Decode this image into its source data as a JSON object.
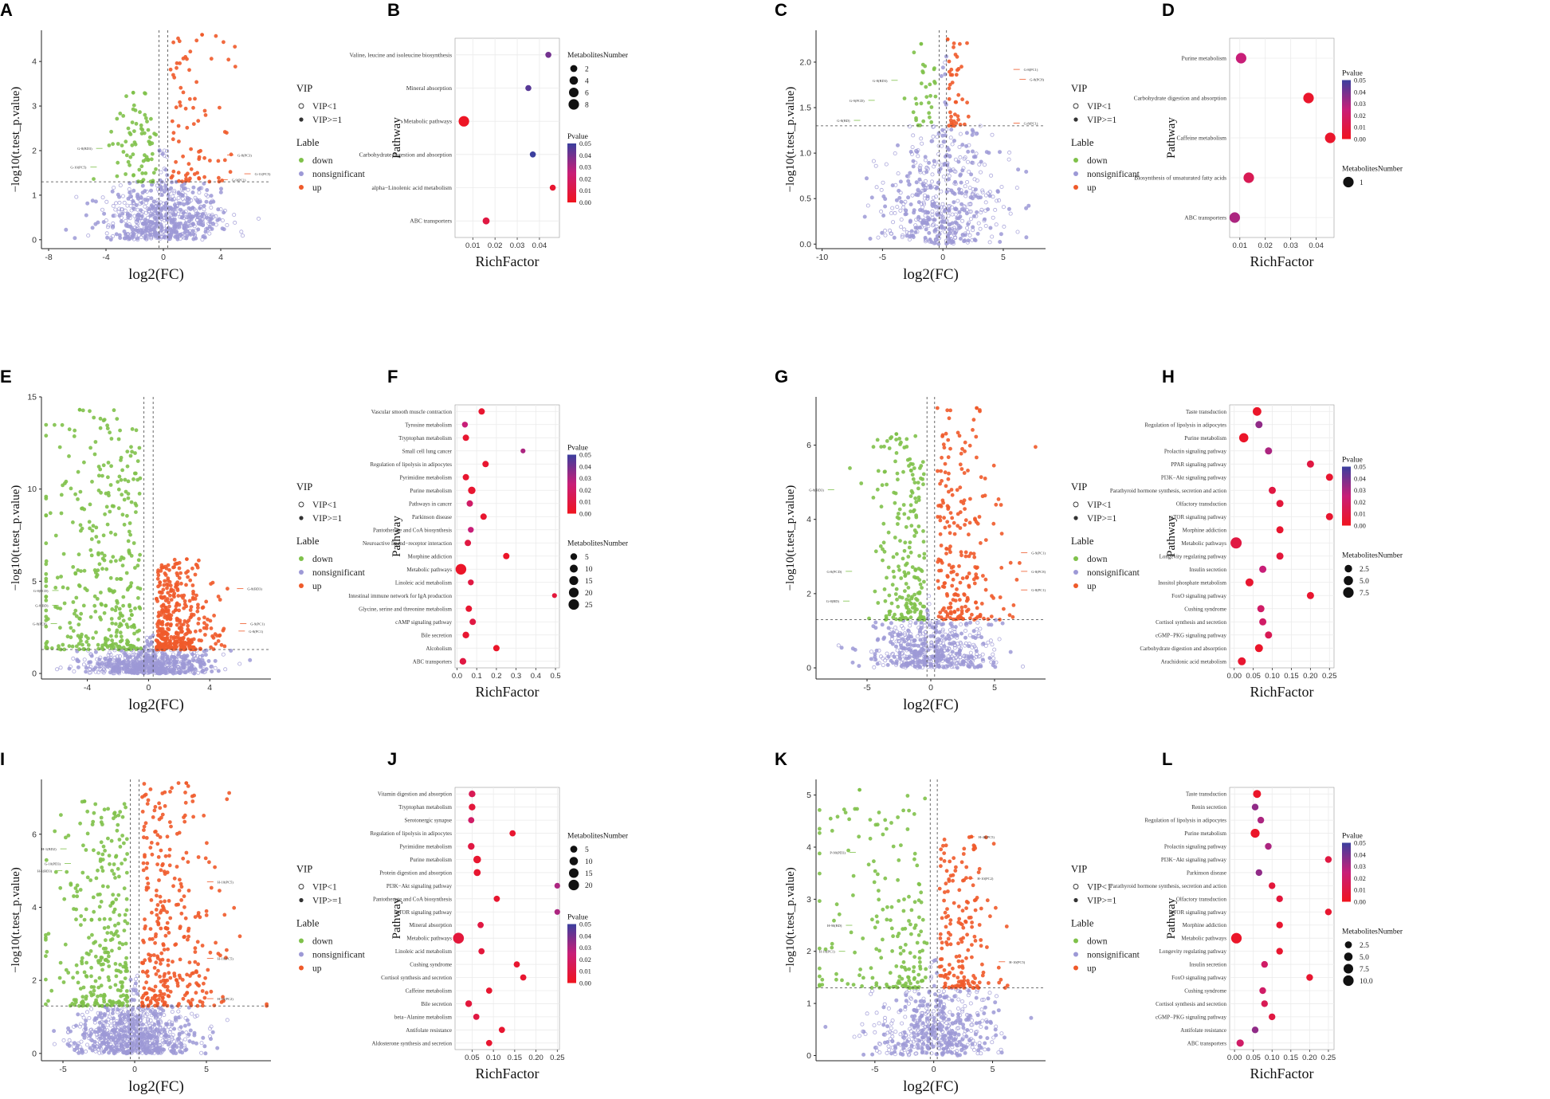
{
  "figure": {
    "description_text": ""
  },
  "colors": {
    "down": "#7fc14a",
    "nonsig": "#9d99d6",
    "up": "#ef5a2a",
    "grid": "#ebebeb",
    "p_high": "#3b3f9e",
    "p_low": "#f0141e"
  },
  "common": {
    "volcano_xlabel": "log2(FC)",
    "volcano_ylabel": "−log10(t.test_p.value)",
    "vip_title": "VIP",
    "vip_items": [
      "VIP<1",
      "VIP>=1"
    ],
    "lable_title": "Lable",
    "lable_items": [
      "down",
      "nonsignificant",
      "up"
    ],
    "enrich_xlabel": "RichFactor",
    "enrich_ylabel": "Pathway",
    "pvalue_title": "Pvalue",
    "size_title": "MetabolitesNumber"
  },
  "chart_data": [
    {
      "panel": "A",
      "type": "scatter",
      "subtype": "volcano",
      "xlabel": "log2(FC)",
      "ylabel": "−log10(t.test_p.value)",
      "xlim": [
        -8.5,
        7.5
      ],
      "ylim": [
        -0.2,
        4.7
      ],
      "xticks": [
        -8,
        -4,
        0,
        4
      ],
      "yticks": [
        0,
        1,
        2,
        3,
        4
      ],
      "fc_lines": [
        -0.3,
        0.3
      ],
      "p_line": 1.3,
      "counts": {
        "nonsig": 650,
        "down": 75,
        "up": 80
      },
      "down_max": [
        -2.1,
        3.3
      ],
      "up_max": [
        2.7,
        4.6
      ],
      "annotations": [
        {
          "text": "G-8(PC3)",
          "x": 5.0,
          "y": 1.9
        },
        {
          "text": "G-11(PC5)",
          "x": 6.2,
          "y": 1.48
        },
        {
          "text": "G-9(PC1)",
          "x": 4.6,
          "y": 1.35
        },
        {
          "text": "G-8(BD3)",
          "x": -4.8,
          "y": 2.05
        },
        {
          "text": "G-10(PC5)",
          "x": -5.2,
          "y": 1.63
        }
      ]
    },
    {
      "panel": "B",
      "type": "scatter",
      "subtype": "enrichment",
      "xlabel": "RichFactor",
      "ylabel": "Pathway",
      "xlim": [
        0.002,
        0.049
      ],
      "xticks": [
        0.01,
        0.02,
        0.03,
        0.04
      ],
      "pathways": [
        "Valine, leucine and isoleucine biosynthesis",
        "Mineral absorption",
        "Metabolic pathways",
        "Carbohydrate digestion and absorption",
        "alpha−Linolenic acid metabolism",
        "ABC transporters"
      ],
      "rich": [
        0.044,
        0.035,
        0.006,
        0.037,
        0.046,
        0.016
      ],
      "counts": [
        1,
        1,
        8,
        1,
        1,
        2
      ],
      "pvalue": [
        0.04,
        0.045,
        0.002,
        0.05,
        0.005,
        0.01
      ],
      "pvalue_ticks": [
        "0.05",
        "0.04",
        "0.03",
        "0.02",
        "0.01",
        "0.00"
      ],
      "size_ticks": [
        "2",
        "4",
        "6",
        "8"
      ],
      "size_values": [
        2,
        4,
        6,
        8
      ]
    },
    {
      "panel": "C",
      "type": "scatter",
      "subtype": "volcano",
      "xlabel": "log2(FC)",
      "ylabel": "−log10(t.test_p.value)",
      "xlim": [
        -10.5,
        8.5
      ],
      "ylim": [
        -0.05,
        2.35
      ],
      "xticks": [
        -10,
        -5,
        0,
        5
      ],
      "yticks": [
        "0.0",
        "0.5",
        "1.0",
        "1.5",
        "2.0"
      ],
      "fc_lines": [
        -0.3,
        0.3
      ],
      "p_line": 1.3,
      "counts": {
        "nonsig": 520,
        "down": 30,
        "up": 40
      },
      "down_max": [
        -1.8,
        2.2
      ],
      "up_max": [
        0.4,
        2.25
      ],
      "annotations": [
        {
          "text": "G-8(PC1)",
          "x": 6.5,
          "y": 1.92
        },
        {
          "text": "G-8(PC8)",
          "x": 7.0,
          "y": 1.81
        },
        {
          "text": "G-8(BD3)",
          "x": -4.4,
          "y": 1.8
        },
        {
          "text": "G-8(PC1)",
          "x": 6.5,
          "y": 1.33
        },
        {
          "text": "G-9(PCD)",
          "x": -6.3,
          "y": 1.58
        },
        {
          "text": "G-8(BD)",
          "x": -7.5,
          "y": 1.36
        }
      ]
    },
    {
      "panel": "D",
      "type": "scatter",
      "subtype": "enrichment",
      "xlabel": "RichFactor",
      "ylabel": "Pathway",
      "xlim": [
        0.006,
        0.047
      ],
      "xticks": [
        0.01,
        0.02,
        0.03,
        0.04
      ],
      "pathways": [
        "Purine metabolism",
        "Carbohydrate digestion and absorption",
        "Caffeine metabolism",
        "Biosynthesis of unsaturated fatty acids",
        "ABC transporters"
      ],
      "rich": [
        0.0105,
        0.037,
        0.0455,
        0.0135,
        0.008
      ],
      "counts": [
        1,
        1,
        1,
        1,
        1
      ],
      "pvalue": [
        0.025,
        0.004,
        0.004,
        0.015,
        0.03
      ],
      "pvalue_ticks": [
        "0.05",
        "0.04",
        "0.03",
        "0.02",
        "0.01",
        "0.00"
      ],
      "size_ticks": [
        "1"
      ],
      "size_values": [
        1
      ]
    },
    {
      "panel": "E",
      "type": "scatter",
      "subtype": "volcano",
      "xlabel": "log2(FC)",
      "ylabel": "−log10(t.test_p.value)",
      "xlim": [
        -7.0,
        8.0
      ],
      "ylim": [
        -0.3,
        15.0
      ],
      "xticks": [
        -4,
        0,
        4
      ],
      "yticks": [
        0,
        5,
        10,
        15
      ],
      "fc_lines": [
        -0.3,
        0.3
      ],
      "p_line": 1.3,
      "counts": {
        "nonsig": 700,
        "down": 360,
        "up": 380
      },
      "down_max": [
        -4.5,
        14.3
      ],
      "up_max": [
        2.5,
        6.2
      ],
      "annotations": [
        {
          "text": "G-8(BD3)",
          "x": 6.3,
          "y": 4.6
        },
        {
          "text": "G-9(PC1)",
          "x": 6.5,
          "y": 2.7
        },
        {
          "text": "G-8(PC1)",
          "x": 6.4,
          "y": 2.3
        },
        {
          "text": "G-8(PCD)",
          "x": -6.4,
          "y": 4.5
        },
        {
          "text": "G-8(BD)",
          "x": -6.4,
          "y": 3.7
        },
        {
          "text": "G-8(PC8)",
          "x": -6.5,
          "y": 2.7
        }
      ]
    },
    {
      "panel": "F",
      "type": "scatter",
      "subtype": "enrichment",
      "xlabel": "RichFactor",
      "ylabel": "Pathway",
      "xlim": [
        -0.01,
        0.52
      ],
      "xticks": [
        "0.0",
        "0.1",
        "0.2",
        "0.3",
        "0.4",
        "0.5"
      ],
      "xtick_values": [
        0,
        0.1,
        0.2,
        0.3,
        0.4,
        0.5
      ],
      "pathways": [
        "Vascular smooth muscle contraction",
        "Tyrosine metabolism",
        "Tryptophan metabolism",
        "Small cell lung cancer",
        "Regulation of lipolysis in adipocytes",
        "Pyrimidine metabolism",
        "Purine metabolism",
        "Pathways in cancer",
        "Parkinson disease",
        "Pantothenate and CoA biosynthesis",
        "Neuroactive ligand−receptor interaction",
        "Morphine addiction",
        "Metabolic pathways",
        "Linoleic acid metabolism",
        "Intestinal immune network for IgA production",
        "Glycine, serine and threonine metabolism",
        "cAMP signaling pathway",
        "Bile secretion",
        "Alcoholism",
        "ABC transporters"
      ],
      "rich": [
        0.125,
        0.04,
        0.045,
        0.335,
        0.145,
        0.045,
        0.075,
        0.065,
        0.135,
        0.07,
        0.055,
        0.25,
        0.02,
        0.07,
        0.495,
        0.06,
        0.08,
        0.045,
        0.2,
        0.03
      ],
      "counts": [
        4,
        3,
        4,
        1,
        4,
        4,
        8,
        4,
        4,
        3,
        4,
        4,
        26,
        3,
        1,
        4,
        4,
        5,
        4,
        5
      ],
      "pvalue": [
        0.005,
        0.025,
        0.005,
        0.03,
        0.005,
        0.005,
        0.005,
        0.02,
        0.005,
        0.025,
        0.01,
        0.003,
        0.003,
        0.01,
        0.008,
        0.005,
        0.01,
        0.005,
        0.003,
        0.01
      ],
      "pvalue_ticks": [
        "0.05",
        "0.04",
        "0.03",
        "0.02",
        "0.01",
        "0.00"
      ],
      "size_ticks": [
        "5",
        "10",
        "15",
        "20",
        "25"
      ],
      "size_values": [
        5,
        10,
        15,
        20,
        25
      ]
    },
    {
      "panel": "G",
      "type": "scatter",
      "subtype": "volcano",
      "xlabel": "log2(FC)",
      "ylabel": "−log10(t.test_p.value)",
      "xlim": [
        -9.0,
        9.0
      ],
      "ylim": [
        -0.3,
        7.3
      ],
      "xticks": [
        -5,
        0,
        5
      ],
      "yticks": [
        0,
        2,
        4,
        6
      ],
      "fc_lines": [
        -0.3,
        0.3
      ],
      "p_line": 1.3,
      "counts": {
        "nonsig": 520,
        "down": 210,
        "up": 230
      },
      "down_max": [
        -2.7,
        6.3
      ],
      "up_max": [
        3.6,
        7.0
      ],
      "annotations": [
        {
          "text": "G-8(BD3)",
          "x": -8.2,
          "y": 4.8
        },
        {
          "text": "G-9(PC1)",
          "x": 7.7,
          "y": 3.1
        },
        {
          "text": "G-8(PC8)",
          "x": 7.7,
          "y": 2.6
        },
        {
          "text": "G-8(PC1)",
          "x": 7.7,
          "y": 2.1
        },
        {
          "text": "G-8(PCD)",
          "x": -6.8,
          "y": 2.6
        },
        {
          "text": "G-8(BD)",
          "x": -7.0,
          "y": 1.8
        }
      ]
    },
    {
      "panel": "H",
      "type": "scatter",
      "subtype": "enrichment",
      "xlabel": "RichFactor",
      "ylabel": "Pathway",
      "xlim": [
        -0.012,
        0.262
      ],
      "xticks": [
        "0.00",
        "0.05",
        "0.10",
        "0.15",
        "0.20",
        "0.25"
      ],
      "xtick_values": [
        0,
        0.05,
        0.1,
        0.15,
        0.2,
        0.25
      ],
      "pathways": [
        "Taste transduction",
        "Regulation of lipolysis in adipocytes",
        "Purine metabolism",
        "Prolactin signaling pathway",
        "PPAR signaling pathway",
        "PI3K−Akt signaling pathway",
        "Parathyroid hormone synthesis, secretion and action",
        "Olfactory transduction",
        "mTOR signaling pathway",
        "Morphine addiction",
        "Metabolic pathways",
        "Longevity regulating pathway",
        "Insulin secretion",
        "Inositol phosphate metabolism",
        "FoxO signaling pathway",
        "Cushing syndrome",
        "Cortisol synthesis and secretion",
        "cGMP−PKG signaling pathway",
        "Carbohydrate digestion and absorption",
        "Arachidonic acid metabolism"
      ],
      "rich": [
        0.06,
        0.065,
        0.025,
        0.09,
        0.2,
        0.25,
        0.1,
        0.12,
        0.25,
        0.12,
        0.005,
        0.12,
        0.075,
        0.04,
        0.2,
        0.07,
        0.075,
        0.09,
        0.065,
        0.02
      ],
      "counts": [
        4,
        2,
        5,
        2,
        2,
        2,
        2,
        2,
        2,
        2,
        9,
        2,
        2,
        3,
        2,
        2,
        2,
        2,
        3,
        3
      ],
      "pvalue": [
        0.003,
        0.035,
        0.003,
        0.03,
        0.01,
        0.005,
        0.01,
        0.008,
        0.005,
        0.005,
        0.01,
        0.008,
        0.025,
        0.005,
        0.005,
        0.02,
        0.02,
        0.015,
        0.003,
        0.005
      ],
      "pvalue_ticks": [
        "0.05",
        "0.04",
        "0.03",
        "0.02",
        "0.01",
        "0.00"
      ],
      "size_ticks": [
        "2.5",
        "5.0",
        "7.5"
      ],
      "size_values": [
        2.5,
        5,
        7.5
      ]
    },
    {
      "panel": "I",
      "type": "scatter",
      "subtype": "volcano",
      "xlabel": "log2(FC)",
      "ylabel": "−log10(t.test_p.value)",
      "xlim": [
        -6.5,
        9.5
      ],
      "ylim": [
        -0.2,
        7.5
      ],
      "xticks": [
        -5,
        0,
        5
      ],
      "yticks": [
        0,
        2,
        4,
        6
      ],
      "fc_lines": [
        -0.3,
        0.3
      ],
      "p_line": 1.3,
      "counts": {
        "nonsig": 750,
        "down": 290,
        "up": 320
      },
      "down_max": [
        -3.5,
        6.9
      ],
      "up_max": [
        3.6,
        7.4
      ],
      "annotations": [
        {
          "text": "H-10(PC5)",
          "x": 5.6,
          "y": 4.7
        },
        {
          "text": "H-1(BD2)",
          "x": -5.3,
          "y": 5.6
        },
        {
          "text": "G-10(PD3)",
          "x": -5.0,
          "y": 5.2
        },
        {
          "text": "H-1(BD3)",
          "x": -5.6,
          "y": 5.0
        },
        {
          "text": "H-10(PC5)",
          "x": 5.6,
          "y": 2.6
        },
        {
          "text": "H-10(PC2)",
          "x": 5.6,
          "y": 1.5
        }
      ]
    },
    {
      "panel": "J",
      "type": "scatter",
      "subtype": "enrichment",
      "xlabel": "RichFactor",
      "ylabel": "Pathway",
      "xlim": [
        0.01,
        0.255
      ],
      "xticks": [
        "0.05",
        "0.10",
        "0.15",
        "0.20",
        "0.25"
      ],
      "xtick_values": [
        0.05,
        0.1,
        0.15,
        0.2,
        0.25
      ],
      "pathways": [
        "Vitamin digestion and absorption",
        "Tryptophan metabolism",
        "Serotonergic synapse",
        "Regulation of lipolysis in adipocytes",
        "Pyrimidine metabolism",
        "Purine metabolism",
        "Protein digestion and absorption",
        "PI3K−Akt signaling pathway",
        "Pantothenate and CoA biosynthesis",
        "mTOR signaling pathway",
        "Mineral absorption",
        "Metabolic pathways",
        "Linoleic acid metabolism",
        "Cushing syndrome",
        "Cortisol synthesis and secretion",
        "Caffeine metabolism",
        "Bile secretion",
        "beta−Alanine metabolism",
        "Antifolate resistance",
        "Aldosterone synthesis and secretion"
      ],
      "rich": [
        0.05,
        0.05,
        0.048,
        0.145,
        0.048,
        0.062,
        0.062,
        0.25,
        0.108,
        0.25,
        0.07,
        0.018,
        0.072,
        0.155,
        0.17,
        0.09,
        0.042,
        0.06,
        0.12,
        0.09
      ],
      "counts": [
        4,
        4,
        3,
        3,
        4,
        7,
        5,
        2,
        3,
        2,
        3,
        22,
        3,
        3,
        3,
        3,
        4,
        3,
        3,
        3
      ],
      "pvalue": [
        0.015,
        0.008,
        0.02,
        0.005,
        0.01,
        0.005,
        0.005,
        0.03,
        0.005,
        0.03,
        0.01,
        0.008,
        0.008,
        0.005,
        0.005,
        0.005,
        0.008,
        0.01,
        0.005,
        0.005
      ],
      "pvalue_ticks": [
        "0.05",
        "0.04",
        "0.03",
        "0.02",
        "0.01",
        "0.00"
      ],
      "size_ticks": [
        "5",
        "10",
        "15",
        "20"
      ],
      "size_values": [
        5,
        10,
        15,
        20
      ]
    },
    {
      "panel": "K",
      "type": "scatter",
      "subtype": "volcano",
      "xlabel": "log2(FC)",
      "ylabel": "−log10(t.test_p.value)",
      "xlim": [
        -10.0,
        9.5
      ],
      "ylim": [
        -0.1,
        5.3
      ],
      "xticks": [
        -5,
        0,
        5
      ],
      "yticks": [
        0,
        1,
        2,
        3,
        4,
        5
      ],
      "fc_lines": [
        -0.3,
        0.3
      ],
      "p_line": 1.3,
      "counts": {
        "nonsig": 500,
        "down": 180,
        "up": 170
      },
      "down_max": [
        -6.3,
        5.1
      ],
      "up_max": [
        3.2,
        4.2
      ],
      "annotations": [
        {
          "text": "H-40(PC5)",
          "x": 3.6,
          "y": 4.2
        },
        {
          "text": "P-90(PD3)",
          "x": -7.3,
          "y": 3.9
        },
        {
          "text": "H-10(PC2)",
          "x": 3.5,
          "y": 3.4
        },
        {
          "text": "H-90(BD)",
          "x": -7.6,
          "y": 2.5
        },
        {
          "text": "H-10(PC1)",
          "x": -8.2,
          "y": 2.0
        },
        {
          "text": "H-10(PC5)",
          "x": 6.2,
          "y": 1.8
        }
      ]
    },
    {
      "panel": "L",
      "type": "scatter",
      "subtype": "enrichment",
      "xlabel": "RichFactor",
      "ylabel": "Pathway",
      "xlim": [
        -0.013,
        0.265
      ],
      "xticks": [
        "0.00",
        "0.05",
        "0.10",
        "0.15",
        "0.20",
        "0.25"
      ],
      "xtick_values": [
        0,
        0.05,
        0.1,
        0.15,
        0.2,
        0.25
      ],
      "pathways": [
        "Taste transduction",
        "Renin secretion",
        "Regulation of lipolysis in adipocytes",
        "Purine metabolism",
        "Prolactin signaling pathway",
        "PI3K−Akt signaling pathway",
        "Parkinson disease",
        "Parathyroid hormone synthesis, secretion and action",
        "Olfactory transduction",
        "mTOR signaling pathway",
        "Morphine addiction",
        "Metabolic pathways",
        "Longevity regulating pathway",
        "Insulin secretion",
        "FoxO signaling pathway",
        "Cushing syndrome",
        "Cortisol synthesis and secretion",
        "cGMP−PKG signaling pathway",
        "Antifolate resistance",
        "ABC transporters"
      ],
      "rich": [
        0.06,
        0.055,
        0.07,
        0.055,
        0.09,
        0.25,
        0.065,
        0.1,
        0.12,
        0.25,
        0.12,
        0.005,
        0.12,
        0.08,
        0.2,
        0.075,
        0.08,
        0.1,
        0.055,
        0.015
      ],
      "counts": [
        4,
        2,
        2,
        6,
        2,
        2,
        2,
        2,
        2,
        2,
        2,
        10,
        2,
        2,
        2,
        2,
        2,
        2,
        2,
        3
      ],
      "pvalue": [
        0.003,
        0.035,
        0.03,
        0.003,
        0.03,
        0.01,
        0.035,
        0.008,
        0.008,
        0.005,
        0.005,
        0.003,
        0.005,
        0.02,
        0.005,
        0.02,
        0.015,
        0.01,
        0.035,
        0.02
      ],
      "pvalue_ticks": [
        "0.05",
        "0.04",
        "0.03",
        "0.02",
        "0.01",
        "0.00"
      ],
      "size_ticks": [
        "2.5",
        "5.0",
        "7.5",
        "10.0"
      ],
      "size_values": [
        2.5,
        5,
        7.5,
        10
      ]
    }
  ]
}
